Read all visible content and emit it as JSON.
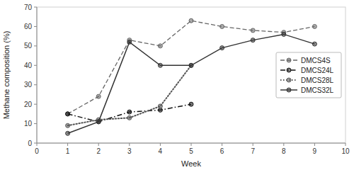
{
  "chart_data": {
    "type": "line",
    "xlabel": "Week",
    "ylabel": "Methane composition (%)",
    "x": [
      1,
      2,
      3,
      4,
      5,
      6,
      7,
      8,
      9
    ],
    "xlim": [
      0,
      10
    ],
    "ylim": [
      0,
      70
    ],
    "xticks": [
      0,
      1,
      2,
      3,
      4,
      5,
      6,
      7,
      8,
      9,
      10
    ],
    "yticks": [
      0,
      10,
      20,
      30,
      40,
      50,
      60,
      70
    ],
    "grid": false,
    "legend": "center right",
    "marker": "circle",
    "series": [
      {
        "name": "DMCS4S",
        "color": "#666666",
        "line_style": "dashed",
        "values": [
          15,
          24,
          53,
          50,
          63,
          60,
          58,
          57,
          60
        ]
      },
      {
        "name": "DMCS24L",
        "color": "#111111",
        "line_style": "dashdot",
        "values": [
          15,
          11,
          16,
          17,
          20,
          null,
          null,
          null,
          null
        ]
      },
      {
        "name": "DMCS28L",
        "color": "#555555",
        "line_style": "dotted",
        "values": [
          9,
          12,
          13,
          19,
          40,
          null,
          null,
          null,
          null
        ]
      },
      {
        "name": "DMCS32L",
        "color": "#333333",
        "line_style": "solid",
        "values": [
          5,
          11,
          52,
          40,
          40,
          49,
          53,
          56,
          51
        ]
      }
    ]
  }
}
